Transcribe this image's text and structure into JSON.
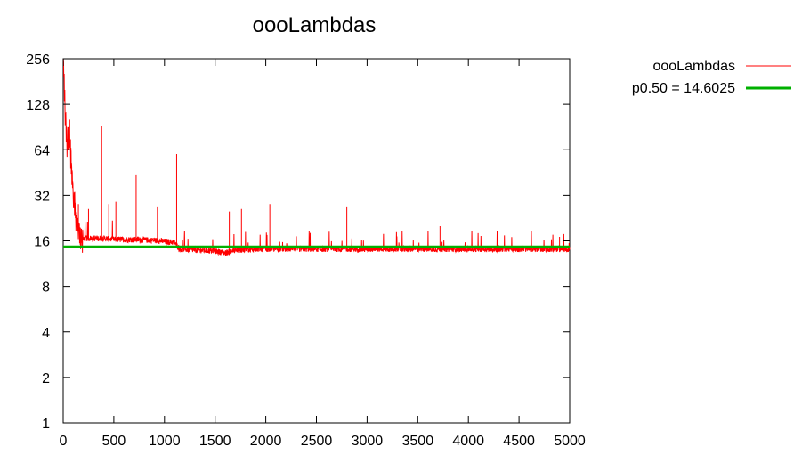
{
  "chart_data": {
    "type": "line",
    "title": "oooLambdas",
    "xlabel": "",
    "ylabel": "",
    "xlim": [
      0,
      5000
    ],
    "ylim": [
      1,
      256
    ],
    "yscale": "log2",
    "grid": false,
    "legend_position": "top-right, outside plot",
    "x_ticks": [
      "0",
      "500",
      "1000",
      "1500",
      "2000",
      "2500",
      "3000",
      "3500",
      "4000",
      "4500",
      "5000"
    ],
    "y_ticks": [
      "1",
      "2",
      "4",
      "8",
      "16",
      "32",
      "64",
      "128",
      "256"
    ],
    "series": [
      {
        "name": "oooLambdas",
        "color": "#ff0000",
        "description_points": [
          [
            0,
            256
          ],
          [
            10,
            180
          ],
          [
            20,
            110
          ],
          [
            40,
            70
          ],
          [
            60,
            100
          ],
          [
            80,
            50
          ],
          [
            100,
            35
          ],
          [
            120,
            25
          ],
          [
            150,
            18
          ],
          [
            200,
            16.5
          ],
          [
            300,
            16.5
          ],
          [
            400,
            16.5
          ],
          [
            500,
            16.2
          ],
          [
            700,
            16.2
          ],
          [
            900,
            16
          ],
          [
            1100,
            15.5
          ],
          [
            1150,
            14
          ],
          [
            1300,
            13.8
          ],
          [
            1500,
            13.6
          ],
          [
            1600,
            13.2
          ],
          [
            1700,
            13.8
          ],
          [
            2000,
            14.0
          ],
          [
            3000,
            14.0
          ],
          [
            4000,
            14.0
          ],
          [
            5000,
            14.0
          ]
        ],
        "spikes": [
          [
            380,
            92
          ],
          [
            720,
            44
          ],
          [
            1120,
            60
          ],
          [
            2040,
            28
          ],
          [
            2800,
            27
          ],
          [
            3720,
            20
          ],
          [
            150,
            28
          ],
          [
            250,
            26
          ],
          [
            450,
            28
          ],
          [
            520,
            29
          ],
          [
            930,
            27
          ],
          [
            1760,
            26
          ],
          [
            1640,
            25
          ],
          [
            4900,
            17
          ]
        ]
      },
      {
        "name": "p0.50 = 14.6025",
        "color": "#00b000",
        "values": [
          14.6025,
          14.6025
        ],
        "x": [
          0,
          5000
        ]
      }
    ]
  }
}
